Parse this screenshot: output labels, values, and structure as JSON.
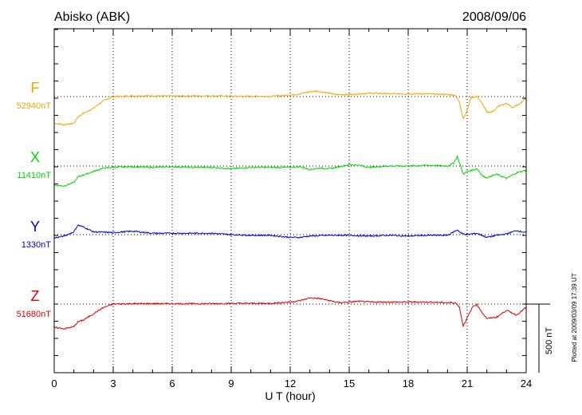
{
  "station_title": "Abisko (ABK)",
  "date": "2008/09/06",
  "plotted_note": "Plotted at 2009/03/09 17:39 UT",
  "scale_label": "500 nT",
  "chart_data": {
    "type": "line",
    "title": "Abisko (ABK)",
    "xlabel": "U T (hour)",
    "ylabel": "",
    "xlim": [
      0,
      24
    ],
    "x_ticks": [
      0,
      3,
      6,
      9,
      12,
      15,
      18,
      21,
      24
    ],
    "scale_bar_nT": 500,
    "grid": true,
    "colors": {
      "F": "#f0a800",
      "X": "#00d800",
      "Y": "#0000d0",
      "Z": "#e00000",
      "grid": "#000000"
    },
    "series": [
      {
        "name": "F",
        "baseline_label": "52940nT",
        "baseline_nT": 52940,
        "x": [
          0,
          0.5,
          1.0,
          1.2,
          1.5,
          2.0,
          2.5,
          3.0,
          4.0,
          5.0,
          6.0,
          7.0,
          8.0,
          9.0,
          10.0,
          11.0,
          12.0,
          12.5,
          13.0,
          13.3,
          13.8,
          14.3,
          15.0,
          15.5,
          16.0,
          17.0,
          18.0,
          19.0,
          20.0,
          20.4,
          20.6,
          20.8,
          21.0,
          21.2,
          21.5,
          21.8,
          22.0,
          22.3,
          22.6,
          23.0,
          23.3,
          23.6,
          24.0
        ],
        "values": [
          -195,
          -205,
          -195,
          -150,
          -120,
          -85,
          -30,
          0,
          5,
          5,
          3,
          5,
          5,
          3,
          2,
          2,
          10,
          20,
          35,
          40,
          30,
          15,
          15,
          20,
          25,
          20,
          20,
          20,
          15,
          10,
          -40,
          -160,
          -100,
          -5,
          0,
          -60,
          -115,
          -110,
          -70,
          -50,
          -80,
          -60,
          -10
        ]
      },
      {
        "name": "X",
        "baseline_label": "11410nT",
        "baseline_nT": 11410,
        "x": [
          0,
          0.5,
          1.0,
          1.2,
          1.5,
          2.0,
          2.5,
          3.0,
          4.0,
          5.0,
          6.0,
          7.0,
          8.0,
          9.0,
          10.0,
          11.0,
          12.0,
          12.5,
          13.0,
          13.5,
          14.0,
          14.5,
          15.0,
          15.5,
          16.0,
          17.0,
          18.0,
          19.0,
          20.0,
          20.3,
          20.5,
          20.8,
          21.0,
          21.5,
          21.8,
          22.0,
          22.5,
          23.0,
          23.5,
          24.0
        ],
        "values": [
          -140,
          -145,
          -120,
          -80,
          -65,
          -40,
          -15,
          -10,
          -5,
          -10,
          -5,
          -10,
          -10,
          -20,
          -10,
          -10,
          -10,
          -5,
          -25,
          -15,
          -20,
          -5,
          10,
          5,
          -10,
          0,
          0,
          5,
          0,
          20,
          70,
          -60,
          -40,
          -20,
          -75,
          -85,
          -60,
          -90,
          -50,
          -30
        ]
      },
      {
        "name": "Y",
        "baseline_label": "1330nT",
        "baseline_nT": 1330,
        "x": [
          0,
          0.5,
          1.0,
          1.2,
          1.5,
          2.0,
          3.0,
          4.0,
          5.0,
          6.0,
          7.0,
          8.0,
          9.0,
          10.0,
          11.0,
          12.0,
          12.5,
          13.0,
          14.0,
          15.0,
          16.0,
          17.0,
          18.0,
          19.0,
          20.0,
          20.5,
          20.7,
          21.0,
          21.5,
          22.0,
          22.5,
          23.0,
          23.5,
          24.0
        ],
        "values": [
          -25,
          -10,
          20,
          70,
          55,
          20,
          15,
          25,
          10,
          10,
          10,
          10,
          0,
          -5,
          -5,
          -20,
          -20,
          -10,
          -5,
          -5,
          -10,
          -5,
          -10,
          -5,
          -5,
          35,
          10,
          0,
          10,
          -20,
          -5,
          5,
          30,
          15
        ]
      },
      {
        "name": "Z",
        "baseline_label": "51680nT",
        "baseline_nT": 51680,
        "x": [
          0,
          0.5,
          1.0,
          1.2,
          1.5,
          2.0,
          2.5,
          3.0,
          4.0,
          5.0,
          6.0,
          7.0,
          8.0,
          9.0,
          10.0,
          11.0,
          12.0,
          12.5,
          13.0,
          13.5,
          14.0,
          14.5,
          15.0,
          15.5,
          16.0,
          17.0,
          18.0,
          19.0,
          20.0,
          20.4,
          20.6,
          20.8,
          21.0,
          21.3,
          21.5,
          21.8,
          22.0,
          22.5,
          23.0,
          23.5,
          24.0
        ],
        "values": [
          -170,
          -180,
          -165,
          -130,
          -115,
          -70,
          -25,
          0,
          3,
          3,
          3,
          3,
          3,
          5,
          5,
          5,
          15,
          25,
          45,
          40,
          25,
          10,
          15,
          20,
          15,
          15,
          15,
          15,
          10,
          10,
          -20,
          -160,
          -100,
          -15,
          -5,
          -70,
          -105,
          -95,
          -45,
          -80,
          -25
        ]
      }
    ]
  }
}
